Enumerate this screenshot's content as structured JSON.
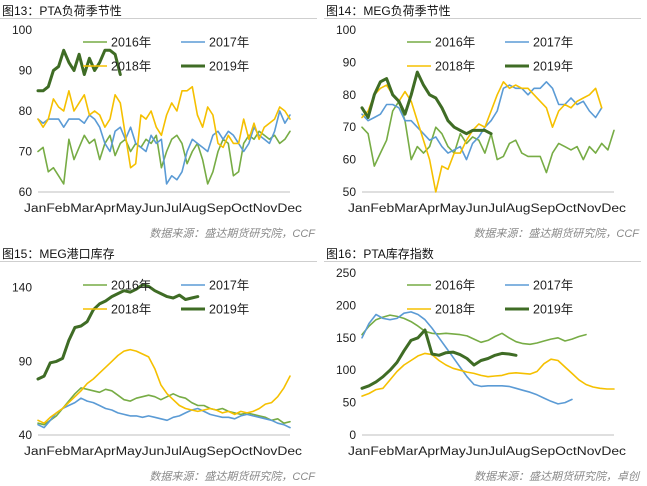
{
  "colors": {
    "y2016": "#77ac45",
    "y2017": "#5b9bd5",
    "y2018": "#f5c000",
    "y2019": "#3f6c25"
  },
  "chart_data": [
    {
      "type": "line",
      "caption": "图13：PTA负荷季节性",
      "source": "数据来源：盛达期货研究院，CCF",
      "x_labels": [
        "Jan",
        "Feb",
        "Mar",
        "Apr",
        "May",
        "Jun",
        "Jul",
        "Aug",
        "Sep",
        "Oct",
        "Nov",
        "Dec"
      ],
      "ylim": [
        60,
        100
      ],
      "y_ticks": [
        60,
        70,
        80,
        90,
        100
      ],
      "grid": false,
      "legend": "top",
      "series": [
        {
          "name": "2016年",
          "key": "y2016",
          "width": 1.6,
          "values": [
            70,
            71,
            65,
            66,
            64,
            62,
            73,
            68,
            71,
            74,
            72,
            73,
            68,
            72,
            74,
            69,
            72,
            73,
            70,
            72,
            71,
            73,
            72,
            74,
            66,
            70,
            73,
            74,
            72,
            67,
            70,
            72,
            68,
            62,
            65,
            70,
            73,
            72,
            64,
            65,
            72,
            74,
            73,
            75,
            74,
            73,
            74,
            72,
            73,
            75
          ]
        },
        {
          "name": "2017年",
          "key": "y2017",
          "width": 1.6,
          "values": [
            78,
            77,
            78,
            78,
            78,
            76,
            78,
            78,
            78,
            77,
            79,
            78,
            76,
            72,
            70,
            75,
            76,
            73,
            76,
            72,
            71,
            70,
            74,
            72,
            73,
            62,
            64,
            63,
            65,
            70,
            73,
            72,
            71,
            70,
            74,
            75,
            73,
            75,
            74,
            72,
            70,
            72,
            76,
            74,
            73,
            72,
            75,
            80,
            77,
            79
          ]
        },
        {
          "name": "2018年",
          "key": "y2018",
          "width": 1.6,
          "values": [
            78,
            76,
            78,
            83,
            81,
            80,
            85,
            80,
            82,
            84,
            79,
            80,
            79,
            76,
            78,
            84,
            82,
            74,
            66,
            67,
            79,
            78,
            80,
            76,
            74,
            79,
            82,
            80,
            85,
            85,
            86,
            79,
            76,
            81,
            79,
            72,
            71,
            74,
            72,
            72,
            78,
            73,
            77,
            73,
            76,
            77,
            78,
            81,
            80,
            78
          ]
        },
        {
          "name": "2019年",
          "key": "y2019",
          "width": 3,
          "values": [
            85,
            85,
            86,
            90,
            91,
            95,
            92,
            90,
            94,
            89,
            93,
            90,
            92,
            95,
            95,
            94,
            89
          ]
        }
      ]
    },
    {
      "type": "line",
      "caption": "图14：MEG负荷季节性",
      "source": "数据来源：盛达期货研究院，CCF",
      "x_labels": [
        "Jan",
        "Feb",
        "Mar",
        "Apr",
        "May",
        "Jun",
        "Jul",
        "Aug",
        "Sep",
        "Oct",
        "Nov",
        "Dec"
      ],
      "ylim": [
        50,
        100
      ],
      "y_ticks": [
        50,
        60,
        70,
        80,
        90,
        100
      ],
      "grid": false,
      "legend": "top",
      "series": [
        {
          "name": "2016年",
          "key": "y2016",
          "width": 1.6,
          "values": [
            70,
            68,
            58,
            62,
            66,
            75,
            78,
            72,
            60,
            64,
            62,
            64,
            70,
            68,
            64,
            62,
            68,
            65,
            67,
            66,
            62,
            68,
            60,
            61,
            65,
            66,
            62,
            61,
            61,
            61,
            56,
            62,
            65,
            64,
            63,
            64,
            60,
            64,
            62,
            65,
            63,
            69
          ]
        },
        {
          "name": "2017年",
          "key": "y2017",
          "width": 1.6,
          "values": [
            74,
            72,
            73,
            74,
            77,
            77,
            76,
            72,
            72,
            70,
            68,
            66,
            67,
            64,
            62,
            63,
            64,
            60,
            65,
            67,
            70,
            72,
            75,
            82,
            83,
            82,
            82,
            80,
            82,
            82,
            84,
            82,
            77,
            77,
            79,
            77,
            78,
            75,
            73,
            76
          ]
        },
        {
          "name": "2018年",
          "key": "y2018",
          "width": 1.6,
          "values": [
            73,
            75,
            80,
            82,
            83,
            80,
            78,
            81,
            78,
            72,
            66,
            60,
            50,
            58,
            57,
            62,
            62,
            66,
            69,
            71,
            70,
            75,
            80,
            84,
            82,
            83,
            82,
            82,
            80,
            78,
            76,
            70,
            75,
            77,
            76,
            78,
            79,
            80,
            82,
            76
          ]
        },
        {
          "name": "2019年",
          "key": "y2019",
          "width": 3,
          "values": [
            76,
            73,
            80,
            84,
            85,
            80,
            78,
            74,
            80,
            87,
            83,
            80,
            79,
            76,
            72,
            70,
            69,
            68,
            69,
            69,
            69,
            68
          ]
        }
      ]
    },
    {
      "type": "line",
      "caption": "图15：MEG港口库存",
      "source": "数据来源：盛达期货研究院，CCF",
      "x_labels": [
        "Jan",
        "Feb",
        "Mar",
        "Apr",
        "May",
        "Jun",
        "Jul",
        "Aug",
        "Sep",
        "Oct",
        "Nov",
        "Dec"
      ],
      "ylim": [
        40,
        150
      ],
      "y_ticks": [
        40,
        90,
        140
      ],
      "grid": false,
      "legend": "top",
      "series": [
        {
          "name": "2016年",
          "key": "y2016",
          "width": 1.6,
          "values": [
            48,
            47,
            50,
            53,
            58,
            63,
            68,
            72,
            71,
            70,
            69,
            71,
            70,
            67,
            64,
            63,
            65,
            66,
            67,
            66,
            64,
            66,
            68,
            66,
            65,
            62,
            60,
            60,
            58,
            57,
            58,
            56,
            55,
            54,
            55,
            54,
            53,
            52,
            50,
            51,
            48,
            49
          ]
        },
        {
          "name": "2017年",
          "key": "y2017",
          "width": 1.6,
          "values": [
            47,
            45,
            50,
            55,
            58,
            60,
            62,
            65,
            63,
            62,
            60,
            58,
            57,
            55,
            54,
            53,
            53,
            52,
            53,
            52,
            51,
            50,
            52,
            53,
            55,
            57,
            58,
            56,
            54,
            53,
            52,
            52,
            51,
            53,
            54,
            53,
            52,
            51,
            50,
            48,
            47,
            45
          ]
        },
        {
          "name": "2018年",
          "key": "y2018",
          "width": 1.6,
          "values": [
            50,
            48,
            52,
            55,
            58,
            62,
            66,
            70,
            75,
            78,
            82,
            86,
            90,
            94,
            97,
            98,
            97,
            95,
            93,
            85,
            74,
            68,
            64,
            60,
            58,
            57,
            56,
            57,
            58,
            57,
            55,
            56,
            54,
            56,
            55,
            56,
            58,
            61,
            62,
            66,
            72,
            80
          ]
        },
        {
          "name": "2019年",
          "key": "y2019",
          "width": 3,
          "values": [
            78,
            80,
            89,
            90,
            92,
            104,
            113,
            114,
            117,
            125,
            129,
            131,
            134,
            136,
            138,
            137,
            139,
            142,
            141,
            138,
            136,
            134,
            133,
            135,
            132,
            133,
            134
          ]
        }
      ]
    },
    {
      "type": "line",
      "caption": "图16：PTA库存指数",
      "source": "数据来源：盛达期货研究院，卓创",
      "x_labels": [
        "Jan",
        "Feb",
        "Mar",
        "Apr",
        "May",
        "Jun",
        "Jul",
        "Aug",
        "Sep",
        "Oct",
        "Nov",
        "Dec"
      ],
      "ylim": [
        0,
        250
      ],
      "y_ticks": [
        0,
        50,
        100,
        150,
        200,
        250
      ],
      "grid": false,
      "legend": "top",
      "series": [
        {
          "name": "2016年",
          "key": "y2016",
          "width": 1.6,
          "values": [
            155,
            168,
            178,
            182,
            185,
            183,
            180,
            175,
            168,
            160,
            157,
            156,
            157,
            156,
            155,
            153,
            148,
            143,
            146,
            152,
            157,
            150,
            144,
            141,
            140,
            142,
            145,
            148,
            150,
            145,
            148,
            152,
            155
          ]
        },
        {
          "name": "2017年",
          "key": "y2017",
          "width": 1.6,
          "values": [
            150,
            172,
            186,
            180,
            178,
            180,
            188,
            190,
            186,
            178,
            165,
            150,
            135,
            120,
            105,
            90,
            78,
            75,
            76,
            76,
            76,
            75,
            72,
            69,
            66,
            62,
            57,
            52,
            48,
            50,
            55
          ]
        },
        {
          "name": "2018年",
          "key": "y2018",
          "width": 1.6,
          "values": [
            60,
            64,
            70,
            72,
            85,
            98,
            108,
            115,
            122,
            126,
            124,
            115,
            108,
            103,
            100,
            97,
            95,
            92,
            90,
            91,
            92,
            95,
            96,
            95,
            94,
            98,
            110,
            117,
            115,
            105,
            95,
            85,
            78,
            74,
            72,
            71,
            71
          ]
        },
        {
          "name": "2019年",
          "key": "y2019",
          "width": 3,
          "values": [
            72,
            76,
            82,
            90,
            100,
            112,
            130,
            146,
            150,
            162,
            125,
            123,
            127,
            128,
            124,
            118,
            108,
            115,
            118,
            123,
            126,
            125,
            123
          ]
        }
      ]
    }
  ]
}
